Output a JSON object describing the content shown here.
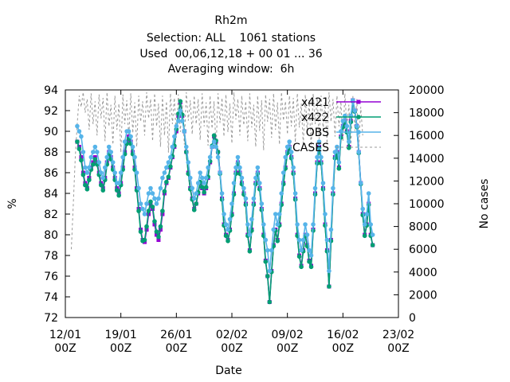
{
  "chart_data": {
    "type": "line",
    "title_lines": [
      "Rh2m",
      "Selection: ALL    1061 stations",
      "Used  00,06,12,18 + 00 01 ... 36",
      "Averaging window:  6h"
    ],
    "xlabel": "Date",
    "ylabel": "%",
    "y2label": "No cases",
    "x_ticks": [
      {
        "top": "12/01",
        "bottom": "00Z"
      },
      {
        "top": "19/01",
        "bottom": "00Z"
      },
      {
        "top": "26/01",
        "bottom": "00Z"
      },
      {
        "top": "02/02",
        "bottom": "00Z"
      },
      {
        "top": "09/02",
        "bottom": "00Z"
      },
      {
        "top": "16/02",
        "bottom": "00Z"
      },
      {
        "top": "23/02",
        "bottom": "00Z"
      }
    ],
    "x_range_days": [
      0,
      42
    ],
    "ylim": [
      72,
      94
    ],
    "y_ticks": [
      72,
      74,
      76,
      78,
      80,
      82,
      84,
      86,
      88,
      90,
      92,
      94
    ],
    "y2lim": [
      0,
      20000
    ],
    "y2_ticks": [
      0,
      2000,
      4000,
      6000,
      8000,
      10000,
      12000,
      14000,
      16000,
      18000,
      20000
    ],
    "legend": {
      "placement": "top-right",
      "entries": [
        {
          "label": "x421",
          "color": "#9400d3",
          "marker": "square"
        },
        {
          "label": "x422",
          "color": "#009e73",
          "marker": "circle"
        },
        {
          "label": "OBS",
          "color": "#56b4e9",
          "marker": "circle"
        },
        {
          "label": "CASES",
          "color": "#999999",
          "marker": "dashed"
        }
      ]
    },
    "step_days": 0.25,
    "series": [
      {
        "name": "x421",
        "start_day": 1.5,
        "values": [
          89.0,
          88.5,
          87.5,
          86.0,
          85.0,
          84.5,
          85.5,
          86.5,
          87.0,
          87.5,
          87.0,
          86.0,
          85.0,
          84.5,
          85.5,
          87.0,
          88.0,
          87.5,
          86.5,
          85.5,
          84.5,
          84.0,
          85.0,
          86.5,
          88.0,
          89.0,
          89.5,
          89.0,
          88.0,
          86.5,
          84.5,
          82.5,
          80.5,
          79.5,
          79.3,
          80.5,
          82.0,
          83.0,
          82.5,
          81.0,
          80.0,
          79.5,
          80.5,
          82.0,
          84.0,
          85.0,
          85.5,
          86.5,
          87.5,
          88.5,
          90.0,
          91.5,
          92.8,
          91.5,
          90.0,
          88.0,
          86.0,
          84.5,
          83.5,
          82.5,
          83.0,
          84.0,
          85.0,
          84.5,
          84.0,
          84.5,
          85.5,
          87.0,
          88.5,
          89.5,
          89.0,
          88.0,
          86.0,
          83.5,
          81.0,
          80.0,
          79.5,
          80.5,
          82.0,
          84.0,
          86.0,
          87.0,
          86.0,
          85.0,
          84.0,
          83.0,
          80.0,
          78.5,
          80.5,
          83.0,
          85.0,
          86.0,
          84.5,
          82.5,
          80.0,
          77.5,
          76.0,
          73.5,
          76.5,
          79.0,
          80.5,
          79.5,
          81.0,
          83.0,
          85.0,
          86.5,
          88.0,
          88.5,
          87.5,
          86.0,
          83.5,
          80.0,
          78.0,
          77.0,
          78.5,
          80.0,
          79.0,
          77.5,
          77.0,
          80.5,
          84.0,
          87.0,
          88.5,
          87.0,
          84.5,
          81.0,
          78.5,
          75.0,
          79.5,
          84.0,
          87.5,
          88.0,
          86.5,
          89.5,
          90.5,
          91.0,
          90.0,
          88.5,
          91.0,
          93.0,
          92.0,
          90.5,
          88.0,
          85.0,
          82.0,
          80.0,
          81.0,
          83.0,
          80.0,
          79.0
        ]
      },
      {
        "name": "x422",
        "start_day": 1.5,
        "values": [
          89.0,
          88.3,
          87.2,
          85.8,
          84.8,
          84.4,
          85.3,
          86.3,
          86.8,
          87.3,
          86.8,
          85.8,
          84.8,
          84.3,
          85.3,
          86.8,
          87.8,
          87.3,
          86.3,
          85.3,
          84.3,
          83.8,
          84.8,
          86.3,
          87.8,
          88.8,
          89.3,
          88.8,
          87.8,
          86.3,
          84.3,
          82.3,
          80.3,
          79.4,
          79.5,
          80.8,
          82.3,
          83.2,
          82.7,
          81.3,
          80.3,
          79.8,
          80.8,
          82.3,
          84.2,
          85.1,
          85.6,
          86.6,
          87.6,
          88.6,
          90.2,
          91.7,
          92.9,
          91.6,
          90.0,
          88.0,
          85.9,
          84.4,
          83.4,
          82.4,
          83.0,
          84.1,
          85.1,
          84.6,
          84.1,
          84.6,
          85.6,
          87.1,
          88.6,
          89.6,
          89.1,
          88.0,
          85.9,
          83.4,
          80.9,
          79.9,
          79.4,
          80.4,
          81.9,
          83.9,
          85.9,
          86.9,
          85.9,
          84.9,
          83.9,
          82.9,
          79.9,
          78.4,
          80.4,
          82.9,
          84.9,
          85.9,
          84.4,
          82.4,
          79.9,
          77.4,
          76.0,
          73.5,
          76.4,
          78.9,
          80.4,
          79.4,
          80.9,
          82.9,
          84.9,
          86.4,
          87.9,
          88.4,
          87.4,
          85.9,
          83.4,
          79.9,
          77.9,
          76.9,
          78.4,
          79.9,
          78.9,
          77.4,
          76.9,
          80.4,
          83.9,
          86.9,
          88.4,
          86.9,
          84.4,
          80.9,
          78.4,
          75.0,
          79.4,
          83.9,
          87.4,
          87.9,
          86.4,
          89.4,
          90.4,
          90.9,
          89.9,
          88.4,
          90.9,
          92.9,
          91.9,
          90.4,
          87.9,
          84.9,
          81.9,
          79.9,
          80.9,
          82.9,
          79.9,
          79.0
        ]
      },
      {
        "name": "OBS",
        "start_day": 1.5,
        "values": [
          90.5,
          90.0,
          89.5,
          88.0,
          86.5,
          86.0,
          86.5,
          87.5,
          88.0,
          88.5,
          88.0,
          87.0,
          86.0,
          85.5,
          86.5,
          87.5,
          88.5,
          88.0,
          87.0,
          86.0,
          85.0,
          85.0,
          86.0,
          87.5,
          89.0,
          90.0,
          90.0,
          89.5,
          88.5,
          87.5,
          86.0,
          84.5,
          83.0,
          82.5,
          82.0,
          83.0,
          84.0,
          84.5,
          84.0,
          83.5,
          83.0,
          83.5,
          84.5,
          85.5,
          86.0,
          86.5,
          87.0,
          87.5,
          88.5,
          89.5,
          90.5,
          91.0,
          92.0,
          91.0,
          90.0,
          88.5,
          87.0,
          85.5,
          84.5,
          83.5,
          84.0,
          85.0,
          86.0,
          85.5,
          85.0,
          85.5,
          86.5,
          87.5,
          88.5,
          89.0,
          88.5,
          87.5,
          86.0,
          84.0,
          82.0,
          81.0,
          80.5,
          81.5,
          83.0,
          85.0,
          86.5,
          87.5,
          86.5,
          85.5,
          84.5,
          83.5,
          81.0,
          80.0,
          81.5,
          83.5,
          85.5,
          86.5,
          85.0,
          83.0,
          81.0,
          79.5,
          78.5,
          76.5,
          78.5,
          80.5,
          82.0,
          81.0,
          82.0,
          84.0,
          86.0,
          87.5,
          88.5,
          89.0,
          88.0,
          86.5,
          84.0,
          81.0,
          79.5,
          78.5,
          79.5,
          81.0,
          80.0,
          78.5,
          78.0,
          81.0,
          84.5,
          87.5,
          89.0,
          87.5,
          85.0,
          82.0,
          79.5,
          76.5,
          80.5,
          84.5,
          88.0,
          88.5,
          87.0,
          90.0,
          91.0,
          91.5,
          90.5,
          89.0,
          91.5,
          93.0,
          92.0,
          90.5,
          88.0,
          85.0,
          82.5,
          81.0,
          82.0,
          84.0,
          81.0,
          80.0
        ]
      },
      {
        "name": "CASES",
        "start_day": 0.75,
        "values": [
          6000,
          10000,
          14000,
          17000,
          19500,
          18500,
          19800,
          18000,
          19200,
          16500,
          19700,
          17000,
          19000,
          16000,
          19600,
          17500,
          19300,
          15500,
          19800,
          16800,
          18700,
          15200,
          19500,
          16500,
          18800,
          14500,
          19600,
          17000,
          19100,
          15800,
          19700,
          16200,
          18900,
          15000,
          19500,
          17200,
          19000,
          16000,
          19800,
          17500,
          19200,
          15500,
          19700,
          16800,
          18800,
          15000,
          19500,
          16000,
          19000,
          14500,
          19700,
          17000,
          19300,
          15800,
          19600,
          16300,
          18700,
          15200,
          19800,
          17300,
          19100,
          16100,
          19500,
          17000,
          19200,
          15600,
          19700,
          16800,
          18900,
          15100,
          19500,
          16600,
          19000,
          14800,
          19700,
          17100,
          19300,
          15900,
          19600,
          16300,
          18800,
          15300,
          19800,
          17400,
          19200,
          16000,
          19500,
          16900,
          19000,
          15500,
          19700,
          16700,
          18700,
          15000,
          19500,
          16400,
          19100,
          14700,
          19600,
          17200,
          19200,
          15800,
          19700,
          16500,
          18900,
          15200,
          19800,
          17300,
          19000,
          16100,
          19500,
          16800,
          19300,
          15400,
          19700,
          16700,
          18800,
          15100,
          19600,
          16300,
          19100,
          14900,
          19700,
          17000,
          19300,
          15700,
          19500,
          16500,
          18900,
          15300,
          19800,
          17200,
          19200,
          15900,
          19500,
          16800,
          19000,
          15500,
          19700,
          16600,
          18700,
          15000,
          19500,
          16400,
          19200,
          14800,
          18500,
          16000
        ]
      }
    ]
  }
}
